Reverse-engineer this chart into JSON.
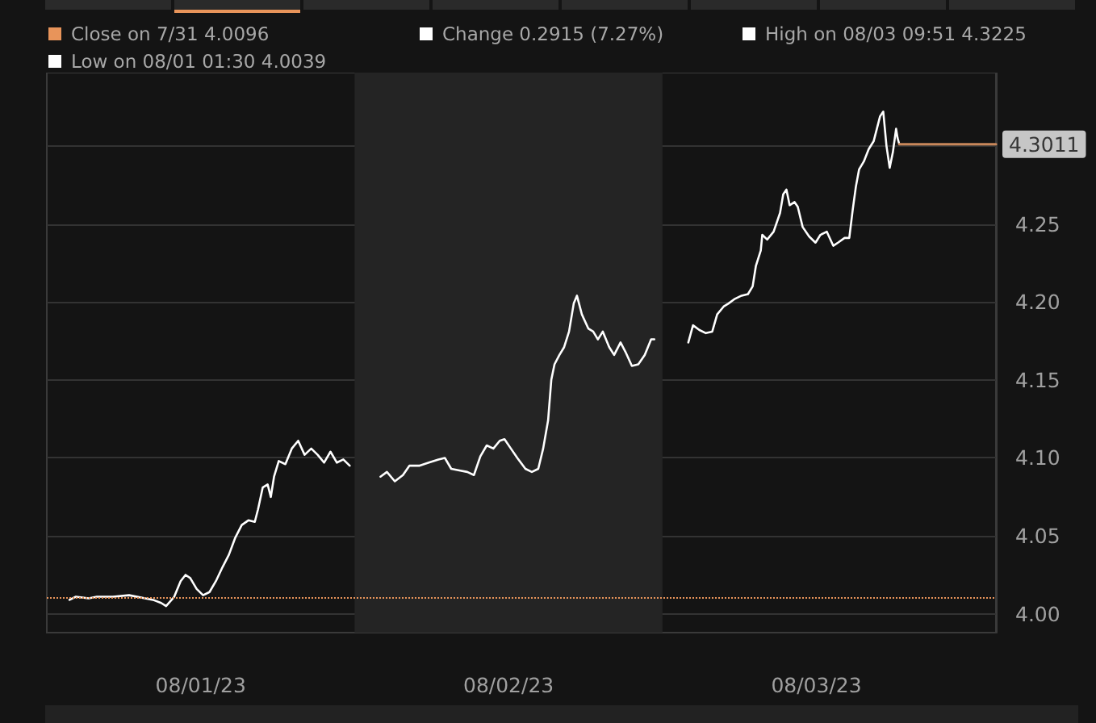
{
  "chart_data": {
    "type": "line",
    "annotations": [
      "Close on 7/31 4.0096",
      "Change 0.2915 (7.27%)",
      "High on 08/03 09:51 4.3225",
      "Low on 08/01 01:30 4.0039",
      {
        "text": "4.3011",
        "x": "--08-04T02:00",
        "y": 4.3011
      }
    ],
    "xlim": [
      "--08-01T00:00",
      "--08-04T02:00"
    ],
    "xticks": [
      {
        "value": "--08-01T12:00",
        "label": "08/01/23"
      },
      {
        "value": "--08-02T12:00",
        "label": "08/02/23"
      },
      {
        "value": "--08-03T12:00",
        "label": "08/03/23"
      }
    ],
    "ylim": [
      3.988,
      4.347
    ],
    "yticks": [
      {
        "value": 4.0,
        "label": "4.00"
      },
      4.05,
      {
        "value": 4.1,
        "label": "4.10"
      },
      4.15,
      {
        "value": 4.2,
        "label": "4.20"
      },
      4.25,
      {
        "value": 4.3,
        "label": null
      }
    ],
    "grid": "y",
    "marker": "none",
    "line_style": "solid",
    "ref_lines": [
      {
        "axis": "y",
        "value": 4.0096,
        "color": "#e8945a",
        "line_style": "dotted"
      }
    ],
    "bands": [
      {
        "axis": "x",
        "from": "--08-02T00:00",
        "to": "--08-03T00:00",
        "color": "#242424"
      }
    ],
    "series": [
      {
        "color": "#ffffff",
        "x": [
          "--08-01T01:46",
          "--08-01T02:16",
          "--08-01T03:16",
          "--08-01T03:54",
          "--08-01T05:09",
          "--08-01T06:25",
          "--08-01T07:40",
          "--08-01T08:17",
          "--08-01T08:55",
          "--08-01T09:18",
          "--08-01T09:56",
          "--08-01T10:26",
          "--08-01T10:49",
          "--08-01T11:11",
          "--08-01T11:41",
          "--08-01T12:11",
          "--08-01T12:41",
          "--08-01T13:11",
          "--08-01T13:42",
          "--08-01T14:12",
          "--08-01T14:42",
          "--08-01T15:12",
          "--08-01T15:43",
          "--08-01T16:13",
          "--08-01T16:28",
          "--08-01T16:50",
          "--08-01T17:13",
          "--08-01T17:28",
          "--08-01T17:43",
          "--08-01T18:05",
          "--08-01T18:36",
          "--08-01T19:06",
          "--08-01T19:36",
          "--08-01T20:06",
          "--08-01T20:37",
          "--08-01T21:07",
          "--08-01T21:37",
          "--08-01T22:07",
          "--08-01T22:37",
          "--08-01T23:07",
          "--08-01T23:37",
          "--08-02T00:48",
          "--08-02T02:01",
          "--08-02T02:31",
          "--08-02T03:08",
          "--08-02T03:46",
          "--08-02T04:16",
          "--08-02T05:02",
          "--08-02T05:47",
          "--08-02T06:32",
          "--08-02T07:02",
          "--08-02T07:32",
          "--08-02T08:10",
          "--08-02T08:47",
          "--08-02T09:18",
          "--08-02T09:48",
          "--08-02T10:18",
          "--08-02T10:49",
          "--08-02T11:19",
          "--08-02T11:41",
          "--08-02T12:11",
          "--08-02T12:41",
          "--08-02T13:19",
          "--08-02T13:49",
          "--08-02T14:19",
          "--08-02T14:42",
          "--08-02T15:05",
          "--08-02T15:20",
          "--08-02T15:35",
          "--08-02T15:58",
          "--08-02T16:20",
          "--08-02T16:43",
          "--08-02T17:05",
          "--08-02T17:20",
          "--08-02T17:43",
          "--08-02T18:13",
          "--08-02T18:36",
          "--08-02T18:58",
          "--08-02T19:21",
          "--08-02T19:51",
          "--08-02T20:14",
          "--08-02T20:44",
          "--08-02T21:07",
          "--08-02T21:37",
          "--08-02T22:07",
          "--08-02T22:37",
          "--08-02T23:07",
          "--08-02T23:22",
          "--08-03T00:36",
          "--08-03T02:01",
          "--08-03T02:23",
          "--08-03T02:53",
          "--08-03T03:23",
          "--08-03T03:53",
          "--08-03T04:16",
          "--08-03T04:46",
          "--08-03T05:09",
          "--08-03T05:39",
          "--08-03T06:10",
          "--08-03T06:40",
          "--08-03T07:02",
          "--08-03T07:17",
          "--08-03T07:40",
          "--08-03T07:47",
          "--08-03T08:10",
          "--08-03T08:40",
          "--08-03T09:10",
          "--08-03T09:25",
          "--08-03T09:40",
          "--08-03T09:55",
          "--08-03T10:18",
          "--08-03T10:33",
          "--08-03T10:56",
          "--08-03T11:26",
          "--08-03T11:56",
          "--08-03T12:19",
          "--08-03T12:49",
          "--08-03T13:19",
          "--08-03T13:41",
          "--08-03T14:12",
          "--08-03T14:34",
          "--08-03T14:50",
          "--08-03T15:05",
          "--08-03T15:20",
          "--08-03T15:42",
          "--08-03T16:05",
          "--08-03T16:28",
          "--08-03T16:43",
          "--08-03T16:58",
          "--08-03T17:13",
          "--08-03T17:28",
          "--08-03T17:43",
          "--08-03T17:58",
          "--08-03T18:13",
          "--08-03T18:20",
          "--08-03T18:28"
        ],
        "values": [
          4.009,
          4.011,
          4.01,
          4.011,
          4.011,
          4.012,
          4.01,
          4.009,
          4.007,
          4.005,
          4.011,
          4.021,
          4.025,
          4.023,
          4.016,
          4.012,
          4.014,
          4.021,
          4.03,
          4.038,
          4.049,
          4.057,
          4.06,
          4.059,
          4.067,
          4.081,
          4.083,
          4.075,
          4.088,
          4.098,
          4.096,
          4.106,
          4.111,
          4.102,
          4.106,
          4.102,
          4.097,
          4.104,
          4.097,
          4.099,
          4.095,
          null,
          4.088,
          4.091,
          4.085,
          4.089,
          4.095,
          4.095,
          4.097,
          4.099,
          4.1,
          4.093,
          4.092,
          4.091,
          4.089,
          4.101,
          4.108,
          4.106,
          4.111,
          4.112,
          4.106,
          4.1,
          4.093,
          4.091,
          4.093,
          4.106,
          4.124,
          4.15,
          4.16,
          4.166,
          4.171,
          4.181,
          4.199,
          4.204,
          4.192,
          4.183,
          4.181,
          4.176,
          4.181,
          4.171,
          4.166,
          4.174,
          4.168,
          4.159,
          4.16,
          4.166,
          4.176,
          4.176,
          null,
          4.174,
          4.185,
          4.182,
          4.18,
          4.181,
          4.192,
          4.197,
          4.199,
          4.202,
          4.204,
          4.205,
          4.21,
          4.223,
          4.233,
          4.243,
          4.24,
          4.245,
          4.257,
          4.269,
          4.272,
          4.262,
          4.264,
          4.261,
          4.248,
          4.242,
          4.238,
          4.243,
          4.245,
          4.236,
          4.238,
          4.241,
          4.241,
          4.259,
          4.274,
          4.285,
          4.29,
          4.298,
          4.303,
          4.311,
          4.319,
          4.322,
          4.3,
          4.286,
          4.296,
          4.311,
          4.305,
          4.3011
        ]
      },
      {
        "color": "#c8875a",
        "x": [
          "--08-03T18:28",
          "--08-04T02:00"
        ],
        "values": [
          4.3011,
          4.3011
        ]
      }
    ]
  }
}
